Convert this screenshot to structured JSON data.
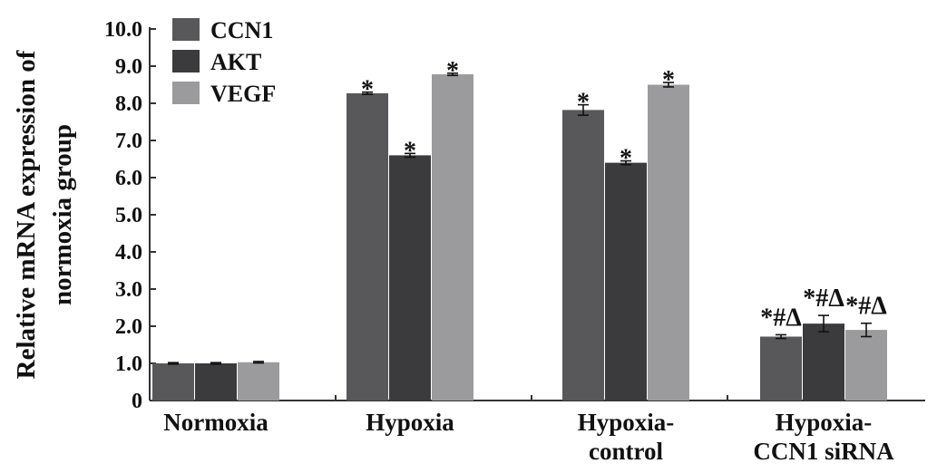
{
  "chart_data": {
    "type": "bar",
    "title": "",
    "xlabel": "",
    "ylabel_lines": [
      "Relative mRNA expression of",
      "normoxia group"
    ],
    "ylim": [
      0,
      10
    ],
    "yticks": [
      "0",
      "1.0",
      "2.0",
      "3.0",
      "4.0",
      "5.0",
      "6.0",
      "7.0",
      "8.0",
      "9.0",
      "10.0"
    ],
    "categories": [
      {
        "lines": [
          "Normoxia"
        ]
      },
      {
        "lines": [
          "Hypoxia"
        ]
      },
      {
        "lines": [
          "Hypoxia-",
          "control"
        ]
      },
      {
        "lines": [
          "Hypoxia-",
          "CCN1 siRNA"
        ]
      }
    ],
    "series": [
      {
        "name": "CCN1",
        "color": "#58585a",
        "values": [
          1.0,
          8.27,
          7.82,
          1.72
        ],
        "errors": [
          0.02,
          0.03,
          0.14,
          0.05
        ],
        "annotations": [
          "",
          "*",
          "*",
          "*#Δ"
        ]
      },
      {
        "name": "AKT",
        "color": "#3b3b3d",
        "values": [
          1.0,
          6.6,
          6.4,
          2.07
        ],
        "errors": [
          0.02,
          0.05,
          0.05,
          0.22
        ],
        "annotations": [
          "",
          "*",
          "*",
          "*#Δ"
        ]
      },
      {
        "name": "VEGF",
        "color": "#9b9b9d",
        "values": [
          1.03,
          8.78,
          8.5,
          1.9
        ],
        "errors": [
          0.02,
          0.03,
          0.06,
          0.18
        ],
        "annotations": [
          "",
          "*",
          "*",
          "*#Δ"
        ]
      }
    ],
    "legend": {
      "position": "top-left"
    },
    "grid": false
  }
}
